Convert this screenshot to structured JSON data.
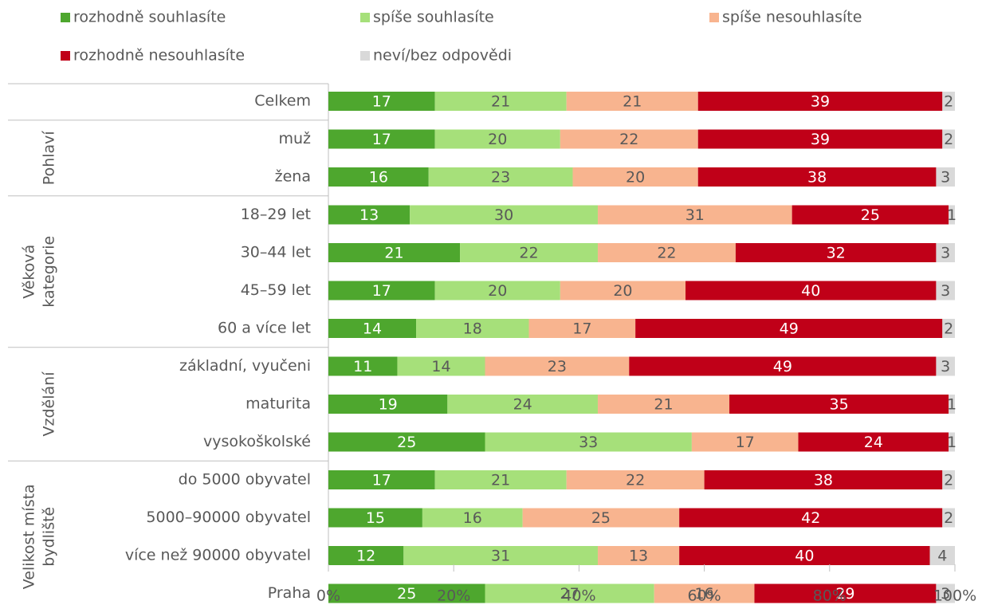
{
  "chart_data": {
    "type": "stacked_barh",
    "categories": [
      "Celkem",
      "muž",
      "žena",
      "18–29 let",
      "30–44 let",
      "45–59 let",
      "60 a více let",
      "základní, vyučeni",
      "maturita",
      "vysokoškolské",
      "do 5000 obyvatel",
      "5000–90000 obyvatel",
      "více než 90000 obyvatel",
      "Praha"
    ],
    "groups": [
      {
        "label": [
          "Pohlaví"
        ],
        "count": 2
      },
      {
        "label": [
          "Věková",
          "kategorie"
        ],
        "count": 4
      },
      {
        "label": [
          "Vzdělání"
        ],
        "count": 3
      },
      {
        "label": [
          "Velikost místa",
          "bydliště"
        ],
        "count": 4
      }
    ],
    "series": [
      {
        "name": "rozhodně souhlasíte",
        "color": "#4ea72e",
        "label_color": "#ffffff",
        "values": [
          17,
          17,
          16,
          13,
          21,
          17,
          14,
          11,
          19,
          25,
          17,
          15,
          12,
          25
        ]
      },
      {
        "name": "spíše souhlasíte",
        "color": "#a6e07a",
        "label_color": "#595959",
        "values": [
          21,
          20,
          23,
          30,
          22,
          20,
          18,
          14,
          24,
          33,
          21,
          16,
          31,
          27
        ]
      },
      {
        "name": "spíše nesouhlasíte",
        "color": "#f8b48f",
        "label_color": "#595959",
        "values": [
          21,
          22,
          20,
          31,
          22,
          20,
          17,
          23,
          21,
          17,
          22,
          25,
          13,
          16
        ]
      },
      {
        "name": "rozhodně nesouhlasíte",
        "color": "#c00018",
        "label_color": "#ffffff",
        "values": [
          39,
          39,
          38,
          25,
          32,
          40,
          49,
          49,
          35,
          24,
          38,
          42,
          40,
          29
        ]
      },
      {
        "name": "neví/bez odpovědi",
        "color": "#d9d9d9",
        "label_color": "#595959",
        "values": [
          2,
          2,
          3,
          1,
          3,
          3,
          2,
          3,
          1,
          1,
          2,
          2,
          4,
          3
        ]
      }
    ],
    "xlim": [
      0,
      100
    ],
    "xticks": [
      {
        "value": 0,
        "label": "0%"
      },
      {
        "value": 20,
        "label": "20%"
      },
      {
        "value": 40,
        "label": "40%"
      },
      {
        "value": 60,
        "label": "60%"
      },
      {
        "value": 80,
        "label": "80%"
      },
      {
        "value": 100,
        "label": "100%"
      }
    ]
  }
}
